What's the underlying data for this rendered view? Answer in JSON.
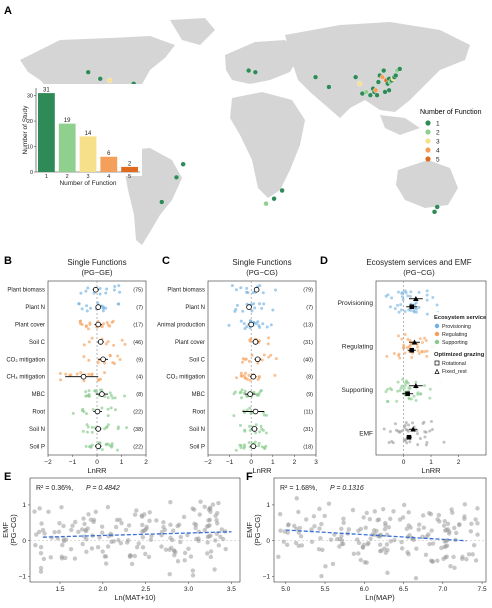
{
  "panels": {
    "A": "A",
    "B": "B",
    "C": "C",
    "D": "D",
    "E": "E",
    "F": "F"
  },
  "colors": {
    "land": "#d5d5d5",
    "func": [
      "#2e8b57",
      "#8fd08f",
      "#f7e08a",
      "#f5a05a",
      "#e06a1e"
    ],
    "provisioning": "#6fb0e0",
    "regulating": "#f5a05a",
    "supporting": "#86c98a",
    "emf": "#9a9a9a",
    "fit": "#3a6fd8"
  },
  "chart_data": [
    {
      "id": "A-map",
      "type": "scatter",
      "legend_title": "Number of Function",
      "legend": [
        "1",
        "2",
        "3",
        "4",
        "5"
      ],
      "points": [
        {
          "lon": -104,
          "lat": 43,
          "n": 1
        },
        {
          "lon": -97,
          "lat": 42,
          "n": 3
        },
        {
          "lon": -88,
          "lat": 38,
          "n": 1
        },
        {
          "lon": -113,
          "lat": 47,
          "n": 1
        },
        {
          "lon": -118,
          "lat": 33,
          "n": 2
        },
        {
          "lon": -79,
          "lat": 40,
          "n": 1
        },
        {
          "lon": -47,
          "lat": -17,
          "n": 1
        },
        {
          "lon": -58,
          "lat": -32,
          "n": 1
        },
        {
          "lon": -42,
          "lat": -9,
          "n": 1
        },
        {
          "lon": 7,
          "lat": 48,
          "n": 1
        },
        {
          "lon": 12,
          "lat": 47,
          "n": 1
        },
        {
          "lon": 26,
          "lat": -30,
          "n": 1
        },
        {
          "lon": 20,
          "lat": -33,
          "n": 2
        },
        {
          "lon": 32,
          "lat": -25,
          "n": 1
        },
        {
          "lon": 57,
          "lat": 44,
          "n": 1
        },
        {
          "lon": 67,
          "lat": 38,
          "n": 1
        },
        {
          "lon": 87,
          "lat": 44,
          "n": 1
        },
        {
          "lon": 90,
          "lat": 40,
          "n": 3
        },
        {
          "lon": 92,
          "lat": 34,
          "n": 1
        },
        {
          "lon": 95,
          "lat": 35,
          "n": 2
        },
        {
          "lon": 98,
          "lat": 33,
          "n": 1
        },
        {
          "lon": 100,
          "lat": 37,
          "n": 1
        },
        {
          "lon": 101,
          "lat": 35,
          "n": 1
        },
        {
          "lon": 102,
          "lat": 36,
          "n": 4
        },
        {
          "lon": 103,
          "lat": 33,
          "n": 1
        },
        {
          "lon": 104,
          "lat": 41,
          "n": 1
        },
        {
          "lon": 105,
          "lat": 45,
          "n": 1
        },
        {
          "lon": 107,
          "lat": 44,
          "n": 4
        },
        {
          "lon": 108,
          "lat": 48,
          "n": 1
        },
        {
          "lon": 110,
          "lat": 42,
          "n": 5
        },
        {
          "lon": 111,
          "lat": 40,
          "n": 1
        },
        {
          "lon": 112,
          "lat": 43,
          "n": 1
        },
        {
          "lon": 113,
          "lat": 41,
          "n": 2
        },
        {
          "lon": 114,
          "lat": 42,
          "n": 1
        },
        {
          "lon": 115,
          "lat": 43,
          "n": 3
        },
        {
          "lon": 116,
          "lat": 44,
          "n": 1
        },
        {
          "lon": 117,
          "lat": 45,
          "n": 1
        },
        {
          "lon": 118,
          "lat": 48,
          "n": 2
        },
        {
          "lon": 120,
          "lat": 49,
          "n": 1
        },
        {
          "lon": 112,
          "lat": 36,
          "n": 1
        },
        {
          "lon": 109,
          "lat": 35,
          "n": 1
        },
        {
          "lon": 148,
          "lat": -35,
          "n": 1
        },
        {
          "lon": 146,
          "lat": -38,
          "n": 1
        }
      ]
    },
    {
      "id": "A-inset",
      "type": "bar",
      "xlabel": "Number of Function",
      "ylabel": "Number of Study",
      "categories": [
        "1",
        "2",
        "3",
        "4",
        "5"
      ],
      "values": [
        31,
        19,
        14,
        6,
        2
      ],
      "ylim": [
        0,
        33
      ],
      "yticks": [
        "0",
        "10",
        "20",
        "30"
      ]
    },
    {
      "id": "B",
      "type": "forest",
      "title": "Single Functions",
      "subtitle": "(PG−GE)",
      "xlabel": "LnRR",
      "xlim": [
        -2,
        2
      ],
      "xticks": [
        "−2",
        "−1",
        "0",
        "1",
        "2"
      ],
      "rows": [
        {
          "label": "Plant biomass",
          "n": "(75)",
          "mean": -0.05,
          "lo": -0.18,
          "hi": 0.08,
          "group": "provisioning"
        },
        {
          "label": "Plant N",
          "n": "(7)",
          "mean": 0.05,
          "lo": -0.02,
          "hi": 0.12,
          "group": "provisioning"
        },
        {
          "label": "Plant cover",
          "n": "(17)",
          "mean": 0.05,
          "lo": -0.1,
          "hi": 0.2,
          "group": "regulating"
        },
        {
          "label": "Soil C",
          "n": "(46)",
          "mean": 0.15,
          "lo": 0.02,
          "hi": 0.28,
          "group": "regulating"
        },
        {
          "label": "CO₂ mitigation",
          "n": "(9)",
          "mean": 0.25,
          "lo": 0.05,
          "hi": 0.45,
          "group": "regulating"
        },
        {
          "label": "CH₄ mitigation",
          "n": "(4)",
          "mean": -0.55,
          "lo": -1.3,
          "hi": 0.05,
          "group": "regulating"
        },
        {
          "label": "MBC",
          "n": "(8)",
          "mean": 0.2,
          "lo": -0.05,
          "hi": 0.45,
          "group": "supporting"
        },
        {
          "label": "Root",
          "n": "(22)",
          "mean": 0.02,
          "lo": -0.15,
          "hi": 0.2,
          "group": "supporting"
        },
        {
          "label": "Soil N",
          "n": "(38)",
          "mean": 0.05,
          "lo": -0.08,
          "hi": 0.18,
          "group": "supporting"
        },
        {
          "label": "Soil P",
          "n": "(22)",
          "mean": 0.05,
          "lo": -0.08,
          "hi": 0.18,
          "group": "supporting"
        }
      ]
    },
    {
      "id": "C",
      "type": "forest",
      "title": "Single Functions",
      "subtitle": "(PG−CG)",
      "xlabel": "LnRR",
      "xlim": [
        -2,
        3
      ],
      "xticks": [
        "−2",
        "−1",
        "0",
        "1",
        "2",
        "3"
      ],
      "rows": [
        {
          "label": "Plant biomass",
          "n": "(79)",
          "mean": 0.25,
          "lo": 0.15,
          "hi": 0.35,
          "group": "provisioning"
        },
        {
          "label": "Plant N",
          "n": "(7)",
          "mean": -0.1,
          "lo": -0.2,
          "hi": 0.0,
          "group": "provisioning"
        },
        {
          "label": "Animal production",
          "n": "(13)",
          "mean": 0.0,
          "lo": -0.1,
          "hi": 0.1,
          "group": "provisioning"
        },
        {
          "label": "Plant cover",
          "n": "(31)",
          "mean": 0.2,
          "lo": 0.05,
          "hi": 0.35,
          "group": "regulating"
        },
        {
          "label": "Soil C",
          "n": "(40)",
          "mean": 0.3,
          "lo": 0.15,
          "hi": 0.45,
          "group": "regulating"
        },
        {
          "label": "CO₂ mitigation",
          "n": "(8)",
          "mean": 0.1,
          "lo": -0.05,
          "hi": 0.25,
          "group": "regulating"
        },
        {
          "label": "MBC",
          "n": "(9)",
          "mean": -0.05,
          "lo": -0.3,
          "hi": 0.2,
          "group": "supporting"
        },
        {
          "label": "Root",
          "n": "(11)",
          "mean": 0.2,
          "lo": -0.4,
          "hi": 0.6,
          "group": "supporting"
        },
        {
          "label": "Soil N",
          "n": "(31)",
          "mean": 0.15,
          "lo": 0.0,
          "hi": 0.3,
          "group": "supporting"
        },
        {
          "label": "Soil P",
          "n": "(18)",
          "mean": 0.1,
          "lo": -0.05,
          "hi": 0.25,
          "group": "supporting"
        }
      ]
    },
    {
      "id": "D",
      "type": "forest",
      "title": "Ecosystem services and EMF",
      "subtitle": "(PG−CG)",
      "xlabel": "LnRR",
      "xlim": [
        -1,
        3
      ],
      "xticks": [
        "0",
        "1",
        "2"
      ],
      "legend_title": "Ecosystem service",
      "legend": [
        "Provisioning",
        "Regulating",
        "Supporting"
      ],
      "legend2_title": "Optimized grazing",
      "legend2": [
        "Rotational",
        "Fixed_rest"
      ],
      "rows": [
        {
          "label": "Provisioning",
          "group": "provisioning",
          "est": [
            {
              "m": 0.3,
              "lo": 0.1,
              "hi": 0.5,
              "shape": "square"
            },
            {
              "m": 0.45,
              "lo": 0.2,
              "hi": 0.7,
              "shape": "triangle"
            }
          ]
        },
        {
          "label": "Regulating",
          "group": "regulating",
          "est": [
            {
              "m": 0.3,
              "lo": 0.15,
              "hi": 0.45,
              "shape": "square"
            },
            {
              "m": 0.4,
              "lo": 0.2,
              "hi": 0.6,
              "shape": "triangle"
            }
          ]
        },
        {
          "label": "Supporting",
          "group": "supporting",
          "est": [
            {
              "m": 0.15,
              "lo": -0.05,
              "hi": 0.35,
              "shape": "square"
            },
            {
              "m": 0.45,
              "lo": 0.2,
              "hi": 0.7,
              "shape": "triangle"
            }
          ]
        },
        {
          "label": "EMF",
          "group": "emf",
          "est": [
            {
              "m": 0.2,
              "lo": 0.1,
              "hi": 0.3,
              "shape": "square"
            },
            {
              "m": 0.35,
              "lo": 0.2,
              "hi": 0.5,
              "shape": "triangle"
            }
          ]
        }
      ]
    },
    {
      "id": "E",
      "type": "scatter",
      "annotation": "R² = 0.36%, ",
      "pvalue": "P = 0.4842",
      "xlabel": "Ln(MAT+10)",
      "ylabel": "EMF",
      "ylabel2": "(PG−CG)",
      "xlim": [
        1.15,
        3.6
      ],
      "ylim": [
        -1.15,
        1.75
      ],
      "xticks": [
        "1.5",
        "2.0",
        "2.5",
        "3.0",
        "3.5"
      ],
      "yticks": [
        "−1",
        "0",
        "1"
      ],
      "fit": {
        "x": [
          1.3,
          3.5
        ],
        "y": [
          0.1,
          0.25
        ]
      }
    },
    {
      "id": "F",
      "type": "scatter",
      "annotation": "R² = 1.68%, ",
      "pvalue": "P = 0.1316",
      "xlabel": "Ln(MAP)",
      "ylabel": "EMF",
      "ylabel2": "(PG−CG)",
      "xlim": [
        4.85,
        7.55
      ],
      "ylim": [
        -1.15,
        1.75
      ],
      "xticks": [
        "5.0",
        "5.5",
        "6.0",
        "6.5",
        "7.0",
        "7.5"
      ],
      "yticks": [
        "−1",
        "0",
        "1"
      ],
      "fit": {
        "x": [
          5.0,
          7.3
        ],
        "y": [
          0.3,
          0.0
        ]
      }
    }
  ]
}
